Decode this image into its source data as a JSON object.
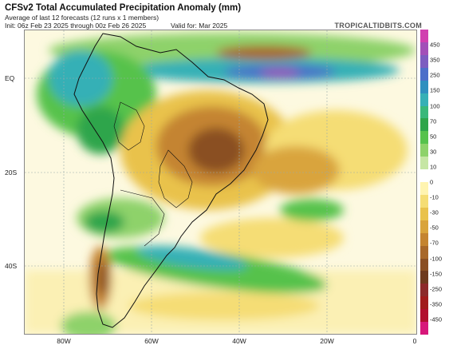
{
  "header": {
    "title": "CFSv2 Total Accumulated Precipitation Anomaly (mm)",
    "subtitle": "Average of last 12 forecasts (12 runs x 1 members)",
    "init": "Init: 06z Feb 23 2025 through 00z Feb 26 2025",
    "valid": "Valid for: Mar 2025",
    "credit": "TROPICALTIDBITS.COM"
  },
  "map": {
    "lat_labels": [
      "EQ",
      "20S",
      "40S"
    ],
    "lon_labels": [
      "80W",
      "60W",
      "40W",
      "20W",
      "0"
    ],
    "lon_range": [
      -90,
      0
    ],
    "lat_range": [
      -60,
      14
    ]
  },
  "colorbar": {
    "labels": [
      "450",
      "350",
      "250",
      "150",
      "100",
      "70",
      "50",
      "30",
      "10",
      "0",
      "-10",
      "-30",
      "-50",
      "-70",
      "-100",
      "-150",
      "-250",
      "-350",
      "-450"
    ],
    "colors": [
      "#d13fb0",
      "#a24fb8",
      "#7c5cc0",
      "#4d6fc9",
      "#2e8fbf",
      "#35b0b6",
      "#39b87a",
      "#2fa54b",
      "#56c24c",
      "#8ed26a",
      "#c6e6a4",
      "#ffffff",
      "#fff4b0",
      "#f5dd74",
      "#e9c24c",
      "#d9a43c",
      "#c48430",
      "#a8682a",
      "#8a4f23",
      "#6e3a1e",
      "#8c2a2a",
      "#a11c1c",
      "#b10f2e",
      "#d7177a"
    ]
  }
}
